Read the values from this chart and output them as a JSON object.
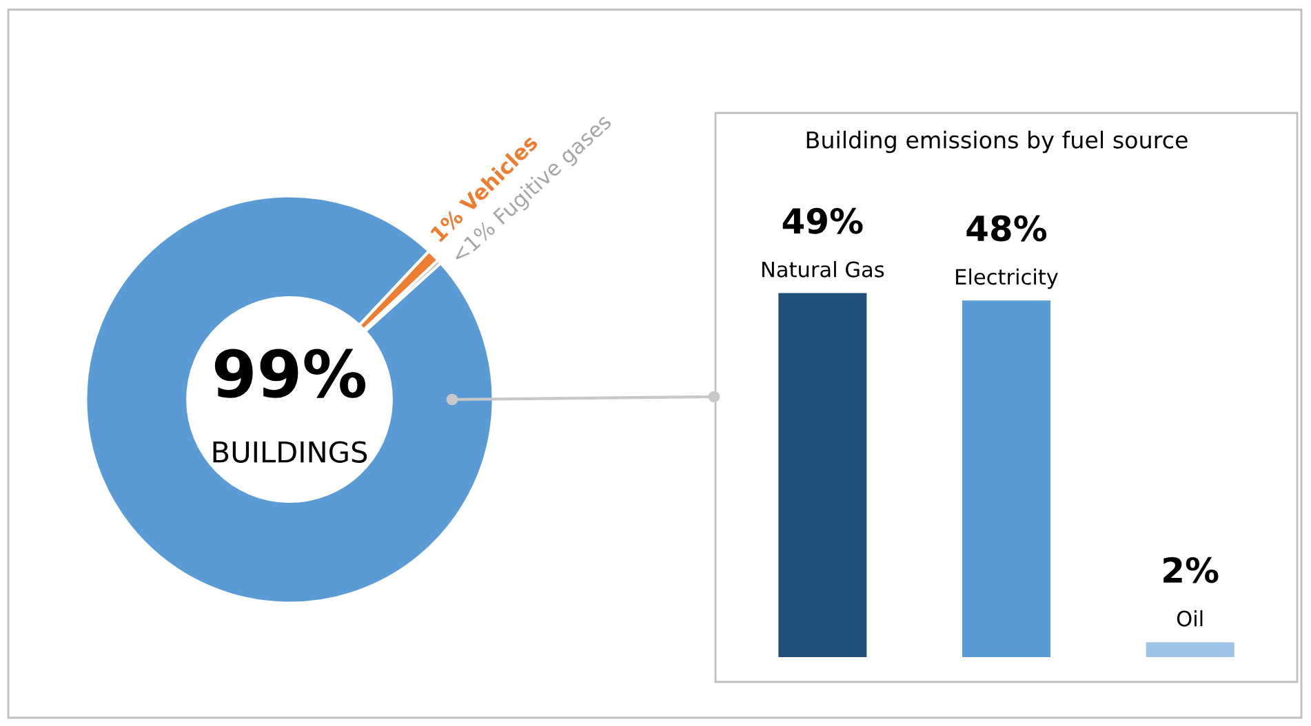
{
  "chart_data": [
    {
      "type": "donut",
      "categories": [
        "BUILDINGS",
        "Vehicles",
        "Fugitive gases"
      ],
      "values": [
        98.7,
        1,
        0.3
      ],
      "value_labels": [
        "99%",
        "1%",
        "<1%"
      ],
      "colors": [
        "#5b9bd5",
        "#ed7d31",
        "#a5a5a5"
      ]
    },
    {
      "type": "bar",
      "title": "Building emissions by fuel source",
      "categories": [
        "Natural Gas",
        "Electricity",
        "Oil"
      ],
      "values": [
        49,
        48,
        2
      ],
      "value_labels": [
        "49%",
        "48%",
        "2%"
      ],
      "colors": [
        "#1f4e79",
        "#5b9bd5",
        "#9dc3e6"
      ]
    }
  ]
}
